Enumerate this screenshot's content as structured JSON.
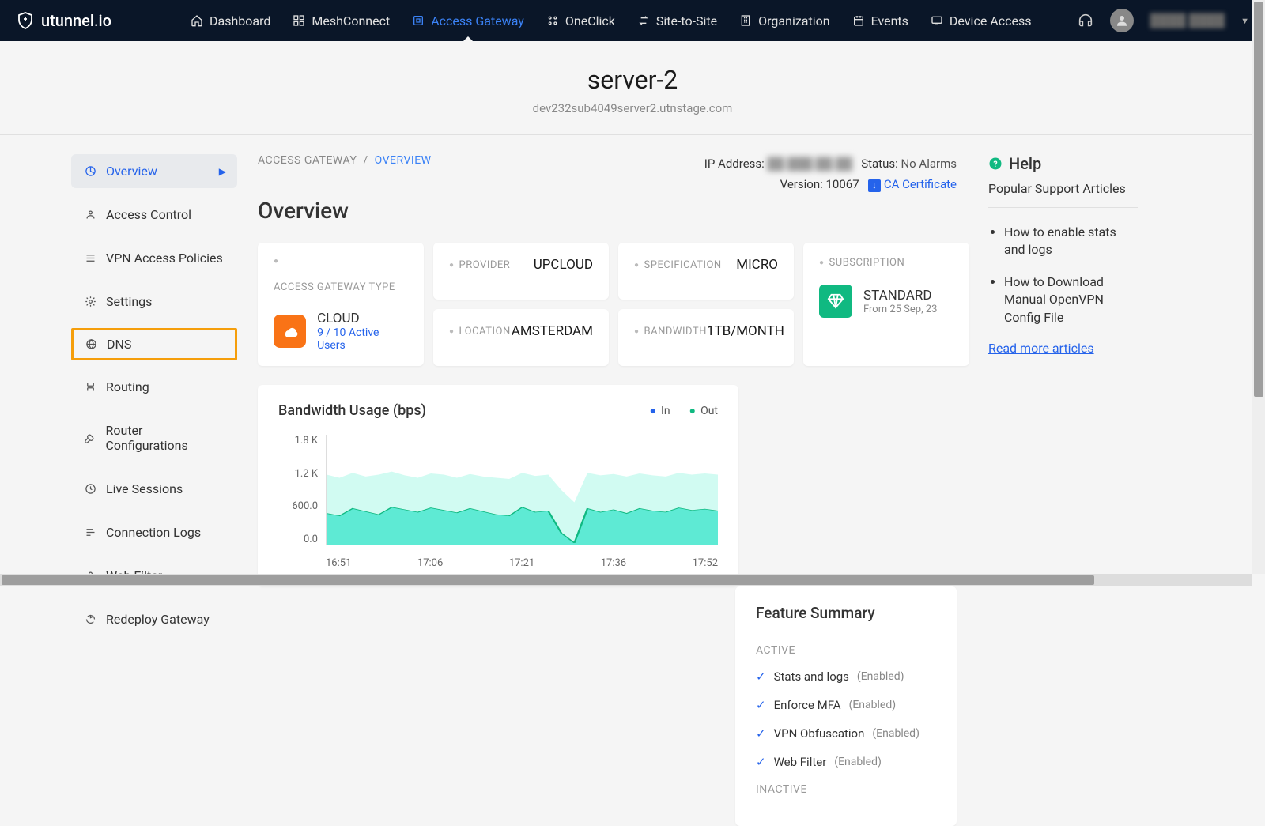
{
  "brand": "utunnel.io",
  "nav": {
    "items": [
      {
        "label": "Dashboard",
        "icon": "home"
      },
      {
        "label": "MeshConnect",
        "icon": "mesh"
      },
      {
        "label": "Access Gateway",
        "icon": "gateway",
        "active": true
      },
      {
        "label": "OneClick",
        "icon": "grid"
      },
      {
        "label": "Site-to-Site",
        "icon": "swap"
      },
      {
        "label": "Organization",
        "icon": "org"
      },
      {
        "label": "Events",
        "icon": "events"
      },
      {
        "label": "Device Access",
        "icon": "device"
      }
    ],
    "user": "████ ████"
  },
  "header": {
    "title": "server-2",
    "sub": "dev232sub4049server2.utnstage.com"
  },
  "sidebar": [
    {
      "label": "Overview",
      "icon": "pie",
      "active": true
    },
    {
      "label": "Access Control",
      "icon": "user"
    },
    {
      "label": "VPN Access Policies",
      "icon": "list"
    },
    {
      "label": "Settings",
      "icon": "gear"
    },
    {
      "label": "DNS",
      "icon": "globe",
      "highlight": true
    },
    {
      "label": "Routing",
      "icon": "route"
    },
    {
      "label": "Router Configurations",
      "icon": "wrench"
    },
    {
      "label": "Live Sessions",
      "icon": "clock"
    },
    {
      "label": "Connection Logs",
      "icon": "bars"
    },
    {
      "label": "Web Filter",
      "icon": "lock"
    },
    {
      "label": "Redeploy Gateway",
      "icon": "redeploy"
    }
  ],
  "breadcrumb": {
    "root": "ACCESS GATEWAY",
    "current": "OVERVIEW"
  },
  "meta": {
    "ip_label": "IP Address:",
    "ip_value": "██.███.██.██",
    "status_label": "Status:",
    "status_value": "No Alarms",
    "version_label": "Version:",
    "version_value": "10067",
    "cert": "CA Certificate"
  },
  "overview_heading": "Overview",
  "cards": {
    "type": {
      "label": "ACCESS GATEWAY TYPE",
      "name": "CLOUD",
      "sub": "9 / 10 Active Users"
    },
    "provider": {
      "label": "PROVIDER",
      "value": "UPCLOUD"
    },
    "spec": {
      "label": "SPECIFICATION",
      "value": "MICRO"
    },
    "location": {
      "label": "LOCATION",
      "value": "AMSTERDAM"
    },
    "bandwidth": {
      "label": "BANDWIDTH",
      "value": "1TB/MONTH"
    },
    "subscription": {
      "label": "SUBSCRIPTION",
      "name": "STANDARD",
      "date": "From 25 Sep, 23"
    }
  },
  "chart": {
    "title": "Bandwidth Usage (bps)",
    "legend": {
      "in": "In",
      "out": "Out"
    },
    "y_ticks": [
      "1.8 K",
      "1.2 K",
      "600.0",
      "0.0"
    ],
    "x_ticks": [
      "16:51",
      "17:06",
      "17:21",
      "17:36",
      "17:52"
    ],
    "ylim": [
      0,
      1800
    ],
    "colors": {
      "in": "#2563eb",
      "out": "#10b981",
      "out_fill": "#5eead4",
      "in_fill": "#ccfbf1",
      "grid": "#e5e5e5"
    },
    "series_out": [
      520,
      480,
      600,
      550,
      500,
      620,
      580,
      540,
      610,
      570,
      530,
      600,
      550,
      500,
      480,
      620,
      540,
      560,
      200,
      40,
      600,
      540,
      580,
      520,
      600,
      560,
      540,
      610,
      570,
      590,
      560
    ],
    "series_in": [
      1150,
      1100,
      1180,
      1120,
      1150,
      1200,
      1140,
      1100,
      1170,
      1150,
      1100,
      1160,
      1120,
      1100,
      1080,
      1180,
      1130,
      1150,
      900,
      700,
      1180,
      1140,
      1160,
      1120,
      1170,
      1140,
      1120,
      1180,
      1150,
      1170,
      1150
    ]
  },
  "features": {
    "title": "Feature Summary",
    "active_label": "ACTIVE",
    "inactive_label": "INACTIVE",
    "items": [
      {
        "name": "Stats and logs",
        "status": "(Enabled)"
      },
      {
        "name": "Enforce MFA",
        "status": "(Enabled)"
      },
      {
        "name": "VPN Obfuscation",
        "status": "(Enabled)"
      },
      {
        "name": "Web Filter",
        "status": "(Enabled)"
      }
    ]
  },
  "help": {
    "title": "Help",
    "subtitle": "Popular Support Articles",
    "articles": [
      "How to enable stats and logs",
      "How to Download Manual OpenVPN Config File"
    ],
    "more": "Read more articles"
  }
}
